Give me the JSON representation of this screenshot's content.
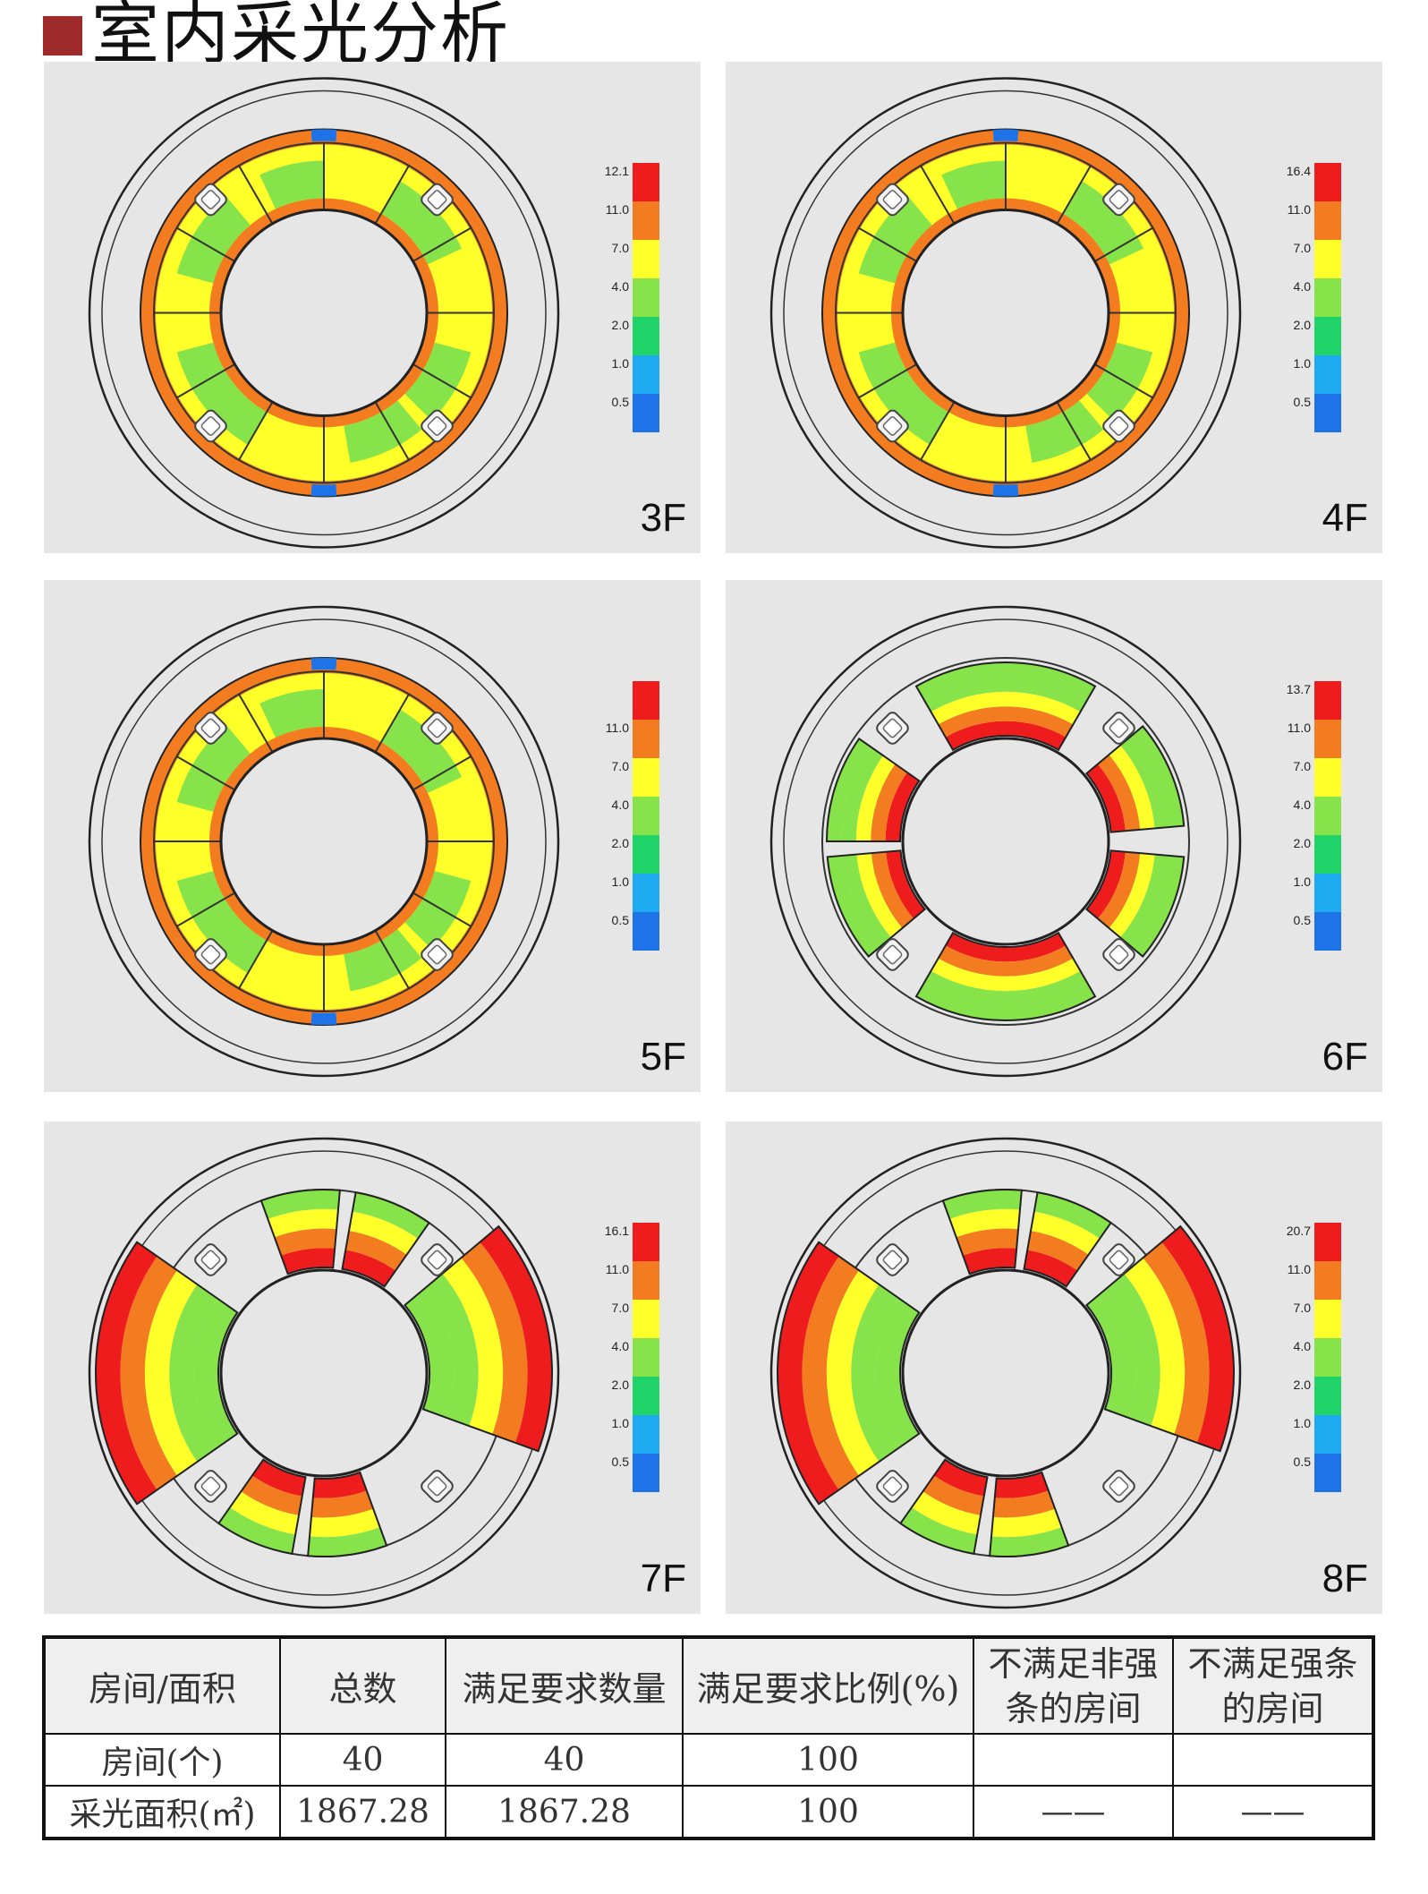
{
  "title": "室内采光分析",
  "colors": {
    "red": "#ee1c1c",
    "orange": "#f47c20",
    "yellow": "#ffff2a",
    "lime": "#86e34a",
    "green": "#20d46a",
    "cyan": "#1eaaf0",
    "blue": "#1e73e8",
    "panel_bg": "#e6e6e6"
  },
  "panels": [
    {
      "floor": "3F",
      "legend_labels": [
        "12.1",
        "11.0",
        "7.0",
        "4.0",
        "2.0",
        "1.0",
        "0.5"
      ],
      "variant": "full"
    },
    {
      "floor": "4F",
      "legend_labels": [
        "16.4",
        "11.0",
        "7.0",
        "4.0",
        "2.0",
        "1.0",
        "0.5"
      ],
      "variant": "full"
    },
    {
      "floor": "5F",
      "legend_labels": [
        "",
        "11.0",
        "7.0",
        "4.0",
        "2.0",
        "1.0",
        "0.5"
      ],
      "variant": "full"
    },
    {
      "floor": "6F",
      "legend_labels": [
        "13.7",
        "11.0",
        "7.0",
        "4.0",
        "2.0",
        "1.0",
        "0.5"
      ],
      "variant": "partial"
    },
    {
      "floor": "7F",
      "legend_labels": [
        "16.1",
        "11.0",
        "7.0",
        "4.0",
        "2.0",
        "1.0",
        "0.5"
      ],
      "variant": "sides"
    },
    {
      "floor": "8F",
      "legend_labels": [
        "20.7",
        "11.0",
        "7.0",
        "4.0",
        "2.0",
        "1.0",
        "0.5"
      ],
      "variant": "sides"
    }
  ],
  "table": {
    "headers": [
      "房间/面积",
      "总数",
      "满足要求数量",
      "满足要求比例(%)",
      "不满足非强\n条的房间",
      "不满足强条\n的房间"
    ],
    "rows": [
      [
        "房间(个)",
        "40",
        "40",
        "100",
        "",
        ""
      ],
      [
        "采光面积(㎡)",
        "1867.28",
        "1867.28",
        "100",
        "——",
        "——"
      ]
    ]
  }
}
